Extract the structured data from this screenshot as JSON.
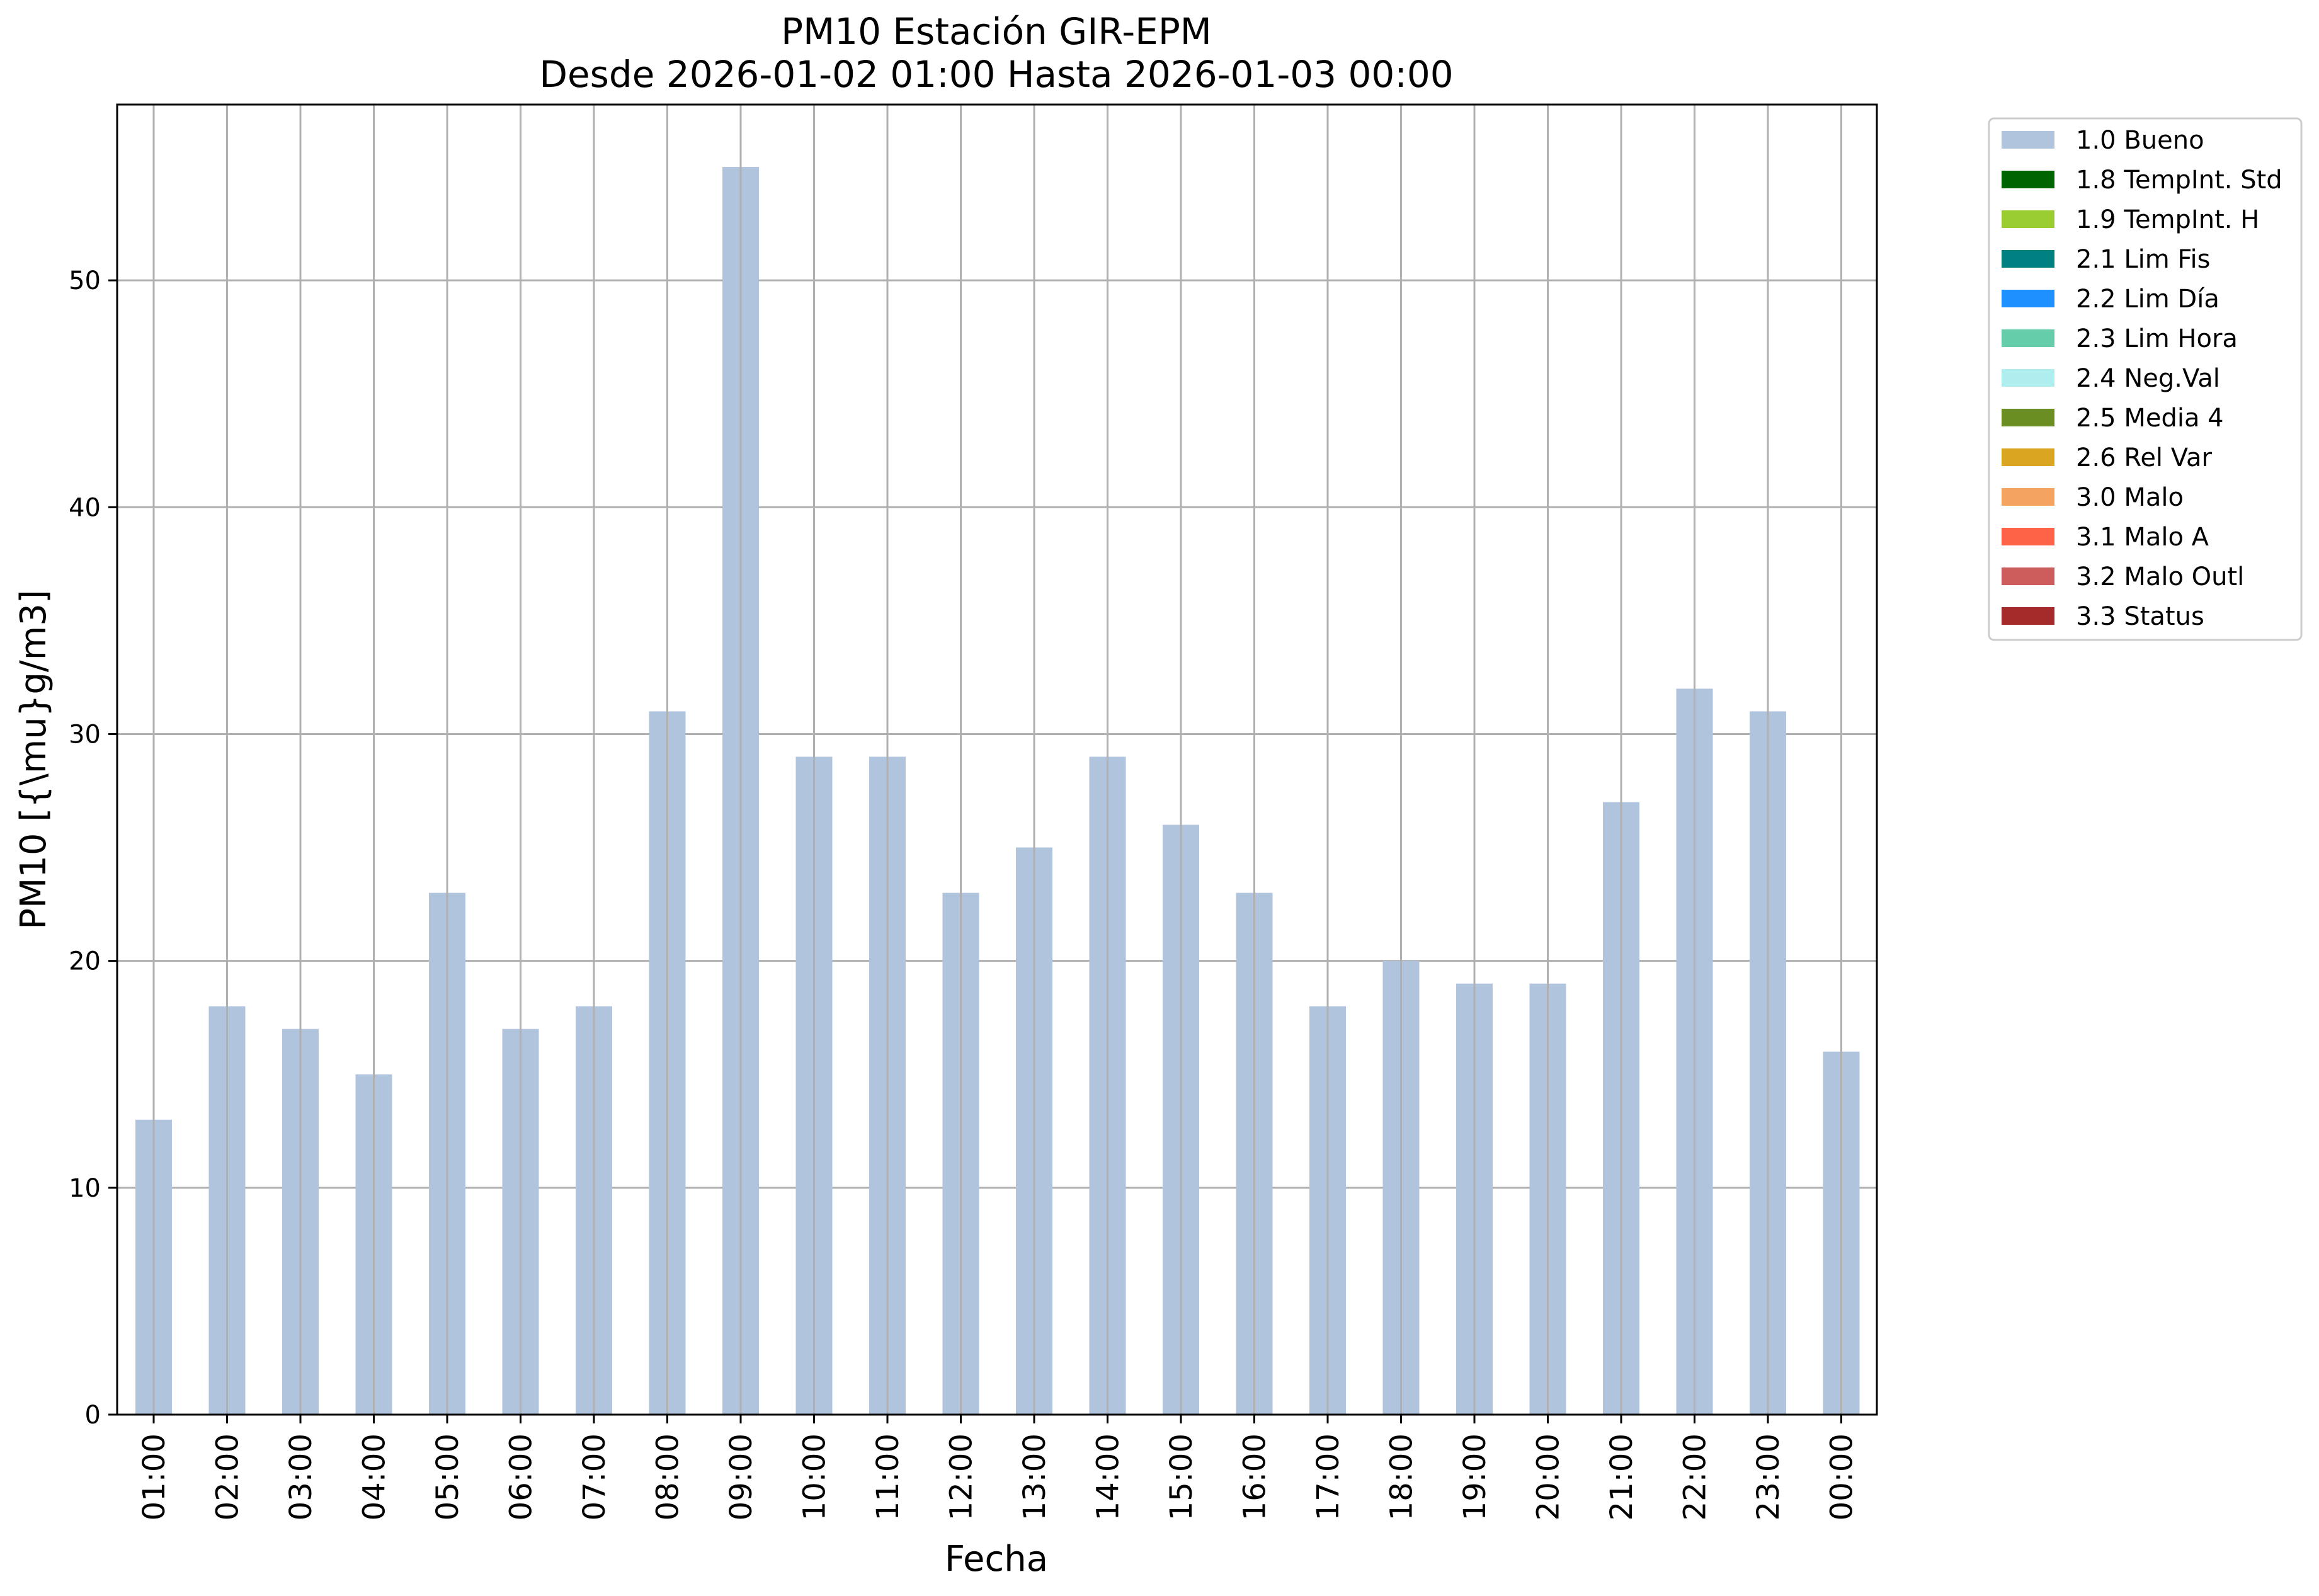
{
  "chart_data": {
    "type": "bar",
    "title": "PM10 Estación GIR-EPM",
    "subtitle": "Desde 2026-01-02 01:00 Hasta 2026-01-03 00:00",
    "xlabel": "Fecha",
    "ylabel": "PM10 [{\\mu}g/m3]",
    "ylim": [
      0,
      57.75
    ],
    "yticks": [
      0,
      10,
      20,
      30,
      40,
      50
    ],
    "grid": true,
    "legend_placement": "outside top-right",
    "categories": [
      "01:00",
      "02:00",
      "03:00",
      "04:00",
      "05:00",
      "06:00",
      "07:00",
      "08:00",
      "09:00",
      "10:00",
      "11:00",
      "12:00",
      "13:00",
      "14:00",
      "15:00",
      "16:00",
      "17:00",
      "18:00",
      "19:00",
      "20:00",
      "21:00",
      "22:00",
      "23:00",
      "00:00"
    ],
    "series": [
      {
        "name": "1.0 Bueno",
        "color": "#b0c4de",
        "values": [
          13,
          18,
          17,
          15,
          23,
          17,
          18,
          31,
          55,
          29,
          29,
          23,
          25,
          29,
          26,
          23,
          18,
          20,
          19,
          19,
          27,
          32,
          31,
          16
        ]
      }
    ],
    "legend": [
      {
        "label": "1.0 Bueno",
        "color": "#b0c4de"
      },
      {
        "label": "1.8 TempInt. Std",
        "color": "#006400"
      },
      {
        "label": "1.9 TempInt. H",
        "color": "#9acd32"
      },
      {
        "label": "2.1 Lim Fis",
        "color": "#008080"
      },
      {
        "label": "2.2 Lim Día",
        "color": "#1e90ff"
      },
      {
        "label": "2.3 Lim Hora",
        "color": "#66cdaa"
      },
      {
        "label": "2.4 Neg.Val",
        "color": "#afeeee"
      },
      {
        "label": "2.5 Media 4",
        "color": "#6b8e23"
      },
      {
        "label": "2.6 Rel Var",
        "color": "#daa520"
      },
      {
        "label": "3.0 Malo",
        "color": "#f4a460"
      },
      {
        "label": "3.1 Malo A",
        "color": "#ff6347"
      },
      {
        "label": "3.2 Malo Outl",
        "color": "#cd5c5c"
      },
      {
        "label": "3.3 Status",
        "color": "#a52a2a"
      }
    ]
  }
}
